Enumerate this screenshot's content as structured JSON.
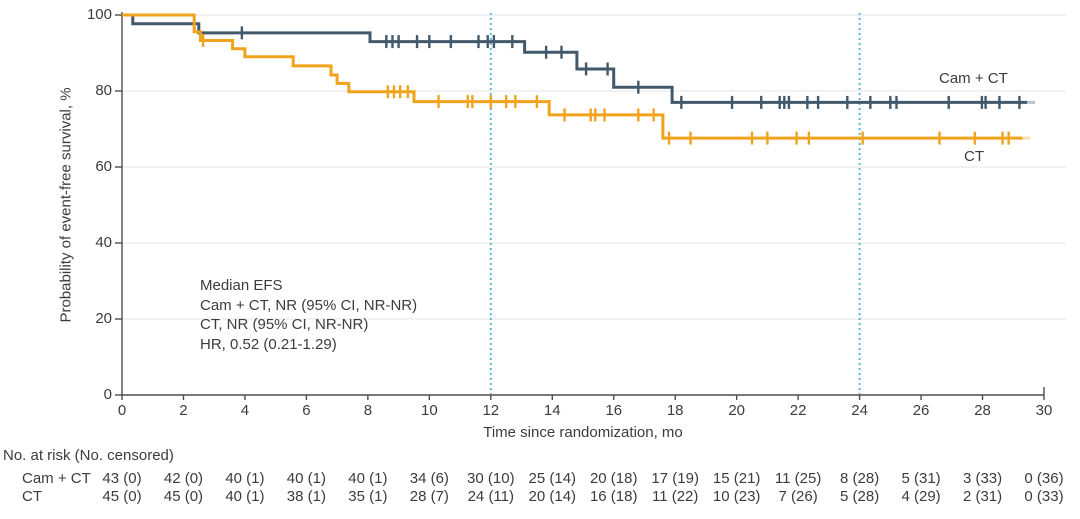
{
  "chart_data": {
    "type": "line",
    "subtype": "kaplan-meier-step",
    "xlabel": "Time since randomization, mo",
    "ylabel": "Probability of event-free survival, %",
    "xlim": [
      0,
      30
    ],
    "ylim": [
      0,
      100
    ],
    "xticks": [
      0,
      2,
      4,
      6,
      8,
      10,
      12,
      14,
      16,
      18,
      20,
      22,
      24,
      26,
      28,
      30
    ],
    "yticks": [
      0,
      20,
      40,
      60,
      80,
      100
    ],
    "grid": "horizontal",
    "reference_lines_x": [
      12,
      24
    ],
    "series": [
      {
        "name": "Cam + CT",
        "color": "#42596B",
        "steps": [
          [
            0,
            100
          ],
          [
            0.35,
            97.7
          ],
          [
            2.5,
            95.3
          ],
          [
            8.07,
            93
          ],
          [
            13.1,
            90.2
          ],
          [
            14.8,
            85.8
          ],
          [
            16,
            81
          ],
          [
            17.9,
            77
          ]
        ],
        "end": 29.45,
        "censors": [
          [
            3.9,
            95.3
          ],
          [
            8.6,
            93
          ],
          [
            8.8,
            93
          ],
          [
            9.0,
            93
          ],
          [
            9.6,
            93
          ],
          [
            10.0,
            93
          ],
          [
            10.7,
            93
          ],
          [
            11.6,
            93
          ],
          [
            11.9,
            93
          ],
          [
            12.1,
            93
          ],
          [
            12.7,
            93
          ],
          [
            13.8,
            90.2
          ],
          [
            14.3,
            90.2
          ],
          [
            15.1,
            85.8
          ],
          [
            15.8,
            85.8
          ],
          [
            16.8,
            81
          ],
          [
            18.2,
            77
          ],
          [
            19.85,
            77
          ],
          [
            20.8,
            77
          ],
          [
            21.4,
            77
          ],
          [
            21.55,
            77
          ],
          [
            21.7,
            77
          ],
          [
            22.3,
            77
          ],
          [
            22.65,
            77
          ],
          [
            23.6,
            77
          ],
          [
            24.35,
            77
          ],
          [
            25.0,
            77
          ],
          [
            25.2,
            77
          ],
          [
            26.9,
            77
          ],
          [
            27.98,
            77
          ],
          [
            28.1,
            77
          ],
          [
            28.55,
            77
          ],
          [
            29.2,
            77
          ]
        ]
      },
      {
        "name": "CT",
        "color": "#F2A31C",
        "steps": [
          [
            0,
            100
          ],
          [
            2.35,
            95.6
          ],
          [
            2.55,
            93.3
          ],
          [
            3.6,
            91.1
          ],
          [
            4.0,
            89.0
          ],
          [
            5.57,
            86.6
          ],
          [
            6.8,
            84.2
          ],
          [
            7.0,
            82.0
          ],
          [
            7.38,
            79.8
          ],
          [
            9.5,
            77.2
          ],
          [
            13.9,
            73.7
          ],
          [
            17.6,
            67.6
          ]
        ],
        "end": 29.3,
        "censors": [
          [
            2.64,
            93.3
          ],
          [
            8.65,
            79.8
          ],
          [
            8.85,
            79.8
          ],
          [
            9.05,
            79.8
          ],
          [
            9.3,
            79.8
          ],
          [
            10.3,
            77.2
          ],
          [
            11.25,
            77.2
          ],
          [
            11.4,
            77.2
          ],
          [
            12.0,
            77.2
          ],
          [
            12.5,
            77.2
          ],
          [
            12.8,
            77.2
          ],
          [
            13.5,
            77.2
          ],
          [
            14.4,
            73.7
          ],
          [
            15.25,
            73.7
          ],
          [
            15.4,
            73.7
          ],
          [
            15.7,
            73.7
          ],
          [
            16.8,
            73.7
          ],
          [
            17.3,
            73.7
          ],
          [
            17.8,
            67.6
          ],
          [
            18.5,
            67.6
          ],
          [
            20.5,
            67.6
          ],
          [
            21.0,
            67.6
          ],
          [
            21.95,
            67.6
          ],
          [
            22.35,
            67.6
          ],
          [
            24.1,
            67.6
          ],
          [
            26.6,
            67.6
          ],
          [
            27.75,
            67.6
          ],
          [
            28.65,
            67.6
          ],
          [
            28.85,
            67.6
          ]
        ]
      }
    ],
    "annotation": {
      "lines": [
        "Median EFS",
        "Cam + CT, NR (95% CI, NR-NR)",
        "CT, NR (95% CI, NR-NR)",
        "HR, 0.52 (0.21-1.29)"
      ]
    },
    "curve_labels": {
      "camct": "Cam + CT",
      "ct": "CT"
    },
    "risk_table": {
      "title": "No. at risk (No. censored)",
      "times": [
        0,
        2,
        4,
        6,
        8,
        10,
        12,
        14,
        16,
        18,
        20,
        22,
        24,
        26,
        28,
        30
      ],
      "rows": [
        {
          "label": "Cam + CT",
          "values": [
            "43 (0)",
            "42 (0)",
            "40 (1)",
            "40 (1)",
            "40 (1)",
            "34 (6)",
            "30 (10)",
            "25 (14)",
            "20 (18)",
            "17 (19)",
            "15 (21)",
            "11 (25)",
            "8 (28)",
            "5 (31)",
            "3 (33)",
            "0 (36)"
          ]
        },
        {
          "label": "CT",
          "values": [
            "45 (0)",
            "45 (0)",
            "40 (1)",
            "38 (1)",
            "35 (1)",
            "28 (7)",
            "24 (11)",
            "20 (14)",
            "16 (18)",
            "11 (22)",
            "10 (23)",
            "7 (26)",
            "5 (28)",
            "4 (29)",
            "2 (31)",
            "0 (33)"
          ]
        }
      ]
    },
    "colors": {
      "cam_ct_line": "#42596B",
      "ct_line": "#F2A31C",
      "reference_line": "#5BB5DF",
      "gridline": "#E9E9E9",
      "axis": "#4D4D4D",
      "text": "#3C3C3C"
    }
  }
}
